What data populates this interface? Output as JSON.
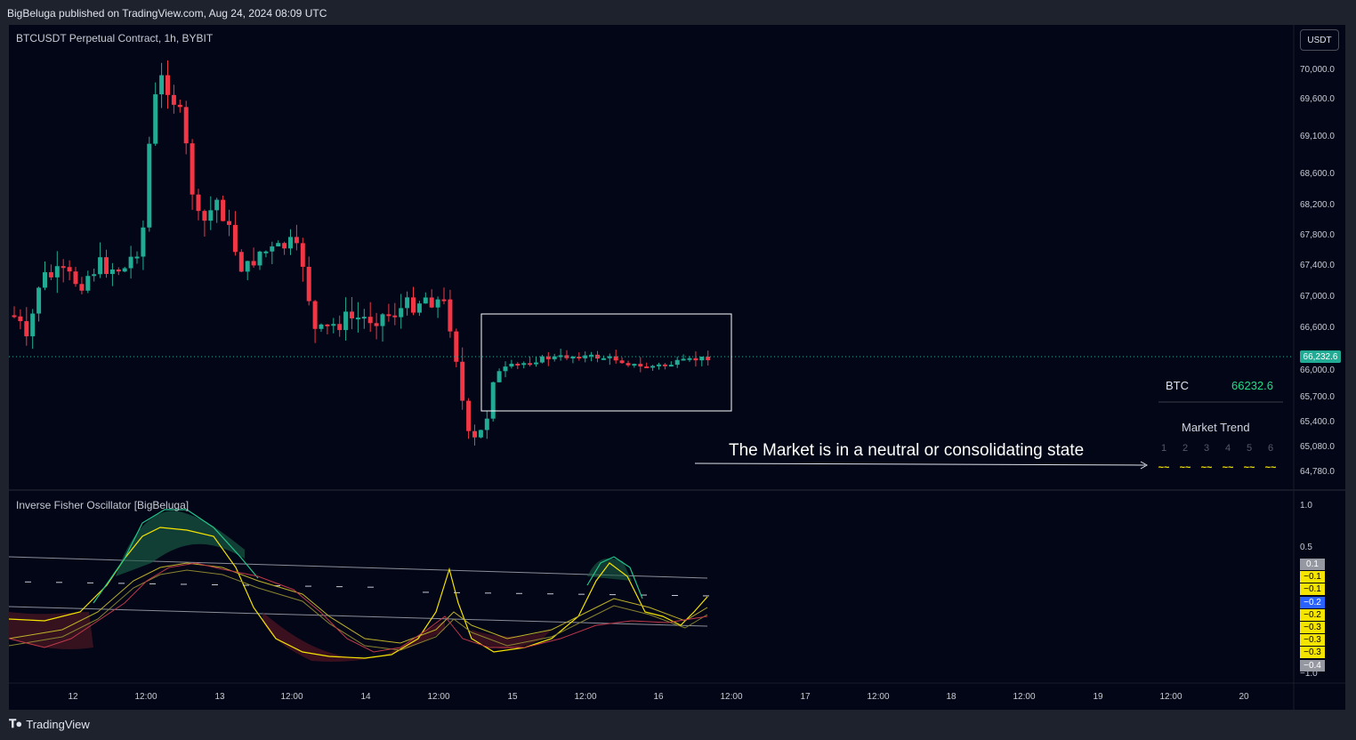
{
  "header": {
    "published": "BigBeluga published on TradingView.com, Aug 24, 2024 08:09 UTC"
  },
  "chart": {
    "symbol_title": "BTCUSDT Perpetual Contract, 1h, BYBIT",
    "currency_button": "USDT",
    "price_axis": [
      "70,000.0",
      "69,600.0",
      "69,100.0",
      "68,600.0",
      "68,200.0",
      "67,800.0",
      "67,400.0",
      "67,000.0",
      "66,600.0",
      "66,000.0",
      "65,700.0",
      "65,400.0",
      "65,080.0",
      "64,780.0"
    ],
    "current_price_label": "66,232.6",
    "time_axis": [
      "12",
      "12:00",
      "13",
      "12:00",
      "14",
      "12:00",
      "15",
      "12:00",
      "16",
      "12:00",
      "17",
      "12:00",
      "18",
      "12:00",
      "19",
      "12:00",
      "20"
    ],
    "colors": {
      "up": "#22ab94",
      "down": "#f23645",
      "background": "#020617"
    }
  },
  "indicator": {
    "title": "Inverse Fisher Oscillator [BigBeluga]",
    "axis": [
      "1.0",
      "0.5",
      "−1.0"
    ],
    "tags": [
      {
        "label": "0.1",
        "color": "#9598a1"
      },
      {
        "label": "−0.1",
        "color": "#f5e400"
      },
      {
        "label": "−0.1",
        "color": "#f5e400"
      },
      {
        "label": "−0.2",
        "color": "#2962ff"
      },
      {
        "label": "−0.2",
        "color": "#f5e400"
      },
      {
        "label": "−0.3",
        "color": "#f5e400"
      },
      {
        "label": "−0.3",
        "color": "#f5e400"
      },
      {
        "label": "−0.3",
        "color": "#f5e400"
      },
      {
        "label": "−0.4",
        "color": "#9598a1"
      }
    ]
  },
  "dashboard": {
    "asset": "BTC",
    "value": "66232.6",
    "market_trend_title": "Market Trend",
    "trend_numbers": [
      "1",
      "2",
      "3",
      "4",
      "5",
      "6"
    ],
    "trend_symbol": "~~"
  },
  "annotation": {
    "message": "The Market is in a neutral or consolidating state"
  },
  "footer": {
    "logo_text": "TradingView",
    "logo_icon": "tradingview-logo-icon"
  }
}
